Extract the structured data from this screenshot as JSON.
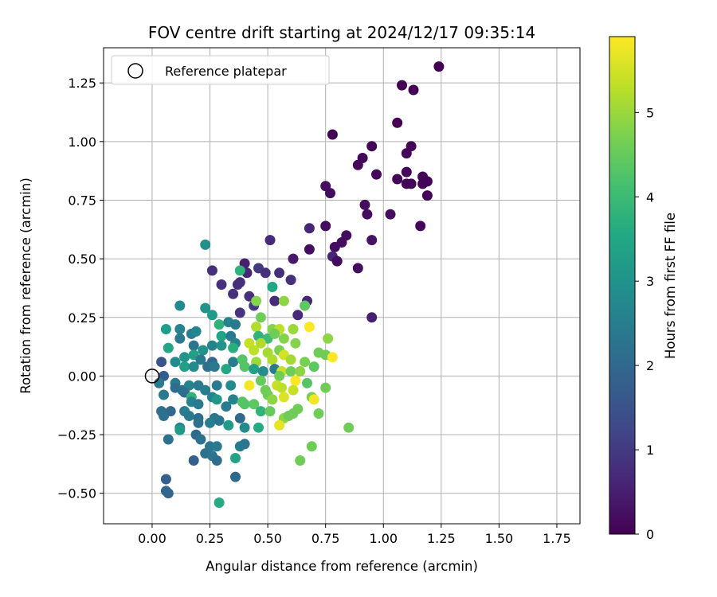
{
  "chart_data": {
    "type": "scatter",
    "title": "FOV centre drift starting at 2024/12/17 09:35:14",
    "xlabel": "Angular distance from reference (arcmin)",
    "ylabel": "Rotation from reference (arcmin)",
    "xlim": [
      -0.21,
      1.85
    ],
    "ylim": [
      -0.63,
      1.4
    ],
    "xticks": [
      0.0,
      0.25,
      0.5,
      0.75,
      1.0,
      1.25,
      1.5,
      1.75
    ],
    "xtick_labels": [
      "0.00",
      "0.25",
      "0.50",
      "0.75",
      "1.00",
      "1.25",
      "1.50",
      "1.75"
    ],
    "yticks": [
      -0.5,
      -0.25,
      0.0,
      0.25,
      0.5,
      0.75,
      1.0,
      1.25
    ],
    "ytick_labels": [
      "−0.50",
      "−0.25",
      "0.00",
      "0.25",
      "0.50",
      "0.75",
      "1.00",
      "1.25"
    ],
    "grid": true,
    "legend": {
      "placement": "upper-left",
      "entries": [
        "Reference platepar"
      ]
    },
    "reference_point": {
      "x": 0.0,
      "y": 0.0
    },
    "colorbar": {
      "label": "Hours from first FF file",
      "range": [
        0,
        5.9
      ],
      "ticks": [
        0,
        1,
        2,
        3,
        4,
        5
      ],
      "colormap": "viridis"
    },
    "points": [
      [
        1.24,
        1.32,
        0.0
      ],
      [
        1.08,
        1.24,
        0.0
      ],
      [
        1.13,
        1.22,
        0.0
      ],
      [
        1.06,
        1.08,
        0.0
      ],
      [
        0.78,
        1.03,
        0.0
      ],
      [
        0.95,
        0.98,
        0.05
      ],
      [
        1.12,
        0.98,
        0.05
      ],
      [
        1.1,
        0.95,
        0.1
      ],
      [
        0.91,
        0.93,
        0.1
      ],
      [
        0.89,
        0.9,
        0.1
      ],
      [
        0.97,
        0.86,
        0.1
      ],
      [
        1.1,
        0.87,
        0.05
      ],
      [
        1.06,
        0.84,
        0.05
      ],
      [
        1.17,
        0.85,
        0.05
      ],
      [
        1.19,
        0.83,
        0.05
      ],
      [
        1.17,
        0.82,
        0.05
      ],
      [
        1.1,
        0.82,
        0.05
      ],
      [
        1.12,
        0.82,
        0.05
      ],
      [
        0.75,
        0.81,
        0.2
      ],
      [
        0.77,
        0.78,
        0.2
      ],
      [
        1.19,
        0.77,
        0.05
      ],
      [
        0.92,
        0.73,
        0.2
      ],
      [
        0.93,
        0.69,
        0.2
      ],
      [
        1.03,
        0.69,
        0.2
      ],
      [
        1.16,
        0.64,
        0.1
      ],
      [
        0.75,
        0.64,
        0.2
      ],
      [
        0.68,
        0.63,
        0.6
      ],
      [
        0.84,
        0.6,
        0.2
      ],
      [
        0.82,
        0.57,
        0.2
      ],
      [
        0.95,
        0.58,
        0.3
      ],
      [
        0.51,
        0.58,
        0.7
      ],
      [
        0.79,
        0.55,
        0.2
      ],
      [
        0.68,
        0.54,
        0.2
      ],
      [
        0.61,
        0.5,
        0.4
      ],
      [
        0.78,
        0.51,
        0.6
      ],
      [
        0.8,
        0.49,
        0.2
      ],
      [
        0.4,
        0.48,
        0.5
      ],
      [
        0.89,
        0.46,
        0.2
      ],
      [
        0.26,
        0.45,
        0.8
      ],
      [
        0.41,
        0.44,
        0.6
      ],
      [
        0.46,
        0.46,
        1.0
      ],
      [
        0.49,
        0.44,
        0.8
      ],
      [
        0.55,
        0.44,
        0.8
      ],
      [
        0.6,
        0.41,
        0.8
      ],
      [
        0.3,
        0.39,
        0.8
      ],
      [
        0.37,
        0.39,
        0.8
      ],
      [
        0.38,
        0.4,
        0.8
      ],
      [
        0.35,
        0.35,
        0.8
      ],
      [
        0.42,
        0.34,
        0.8
      ],
      [
        0.53,
        0.32,
        0.7
      ],
      [
        0.67,
        0.32,
        0.6
      ],
      [
        0.44,
        0.3,
        1.0
      ],
      [
        0.38,
        0.27,
        0.9
      ],
      [
        0.63,
        0.26,
        0.7
      ],
      [
        0.95,
        0.25,
        0.5
      ],
      [
        0.23,
        0.56,
        2.9
      ],
      [
        0.38,
        0.45,
        3.8
      ],
      [
        0.52,
        0.38,
        3.5
      ],
      [
        0.45,
        0.32,
        4.8
      ],
      [
        0.57,
        0.32,
        4.9
      ],
      [
        0.66,
        0.3,
        4.4
      ],
      [
        0.12,
        0.3,
        2.8
      ],
      [
        0.23,
        0.29,
        3.0
      ],
      [
        0.26,
        0.26,
        3.2
      ],
      [
        0.29,
        0.22,
        3.8
      ],
      [
        0.33,
        0.23,
        2.6
      ],
      [
        0.36,
        0.22,
        2.4
      ],
      [
        0.47,
        0.25,
        4.6
      ],
      [
        0.45,
        0.21,
        5.2
      ],
      [
        0.52,
        0.2,
        4.8
      ],
      [
        0.55,
        0.2,
        5.3
      ],
      [
        0.61,
        0.2,
        5.0
      ],
      [
        0.68,
        0.21,
        5.9
      ],
      [
        0.06,
        0.2,
        3.2
      ],
      [
        0.12,
        0.2,
        2.6
      ],
      [
        0.17,
        0.18,
        2.5
      ],
      [
        0.19,
        0.19,
        2.7
      ],
      [
        0.3,
        0.17,
        3.4
      ],
      [
        0.34,
        0.17,
        2.4
      ],
      [
        0.36,
        0.14,
        2.6
      ],
      [
        0.46,
        0.17,
        3.8
      ],
      [
        0.5,
        0.16,
        4.0
      ],
      [
        0.53,
        0.18,
        4.6
      ],
      [
        0.57,
        0.16,
        4.8
      ],
      [
        0.76,
        0.16,
        4.9
      ],
      [
        0.42,
        0.14,
        5.4
      ],
      [
        0.47,
        0.14,
        5.2
      ],
      [
        0.07,
        0.12,
        3.5
      ],
      [
        0.12,
        0.16,
        2.4
      ],
      [
        0.18,
        0.13,
        2.3
      ],
      [
        0.22,
        0.11,
        3.0
      ],
      [
        0.26,
        0.13,
        2.6
      ],
      [
        0.3,
        0.13,
        3.0
      ],
      [
        0.35,
        0.12,
        3.7
      ],
      [
        0.44,
        0.11,
        5.3
      ],
      [
        0.5,
        0.1,
        5.1
      ],
      [
        0.55,
        0.11,
        4.7
      ],
      [
        0.62,
        0.14,
        4.8
      ],
      [
        0.72,
        0.1,
        4.6
      ],
      [
        0.75,
        0.09,
        4.6
      ],
      [
        0.78,
        0.08,
        5.9
      ],
      [
        0.04,
        0.06,
        1.5
      ],
      [
        0.1,
        0.06,
        2.8
      ],
      [
        0.14,
        0.08,
        3.0
      ],
      [
        0.18,
        0.09,
        3.3
      ],
      [
        0.21,
        0.07,
        2.4
      ],
      [
        0.26,
        0.06,
        2.0
      ],
      [
        0.35,
        0.06,
        2.5
      ],
      [
        0.39,
        0.07,
        4.3
      ],
      [
        0.45,
        0.06,
        5.0
      ],
      [
        0.52,
        0.07,
        5.2
      ],
      [
        0.57,
        0.09,
        5.5
      ],
      [
        0.6,
        0.07,
        5.1
      ],
      [
        0.66,
        0.06,
        4.7
      ],
      [
        0.14,
        0.04,
        3.3
      ],
      [
        0.18,
        0.04,
        2.8
      ],
      [
        0.24,
        0.04,
        2.2
      ],
      [
        0.27,
        0.04,
        2.4
      ],
      [
        0.32,
        0.03,
        3.5
      ],
      [
        0.4,
        0.04,
        4.3
      ],
      [
        0.44,
        0.03,
        3.3
      ],
      [
        0.48,
        0.02,
        2.9
      ],
      [
        0.53,
        0.03,
        2.4
      ],
      [
        0.56,
        0.02,
        5.4
      ],
      [
        0.6,
        0.02,
        4.6
      ],
      [
        0.64,
        0.02,
        4.9
      ],
      [
        0.7,
        0.04,
        4.4
      ],
      [
        0.05,
        0.0,
        1.7
      ],
      [
        0.47,
        -0.02,
        4.5
      ],
      [
        0.55,
        0.0,
        4.6
      ],
      [
        0.62,
        -0.02,
        5.9
      ],
      [
        0.67,
        -0.03,
        4.3
      ],
      [
        0.03,
        -0.03,
        2.4
      ],
      [
        0.1,
        -0.03,
        2.4
      ],
      [
        0.1,
        -0.05,
        2.1
      ],
      [
        0.13,
        -0.06,
        2.2
      ],
      [
        0.16,
        -0.04,
        2.6
      ],
      [
        0.2,
        -0.04,
        2.4
      ],
      [
        0.23,
        -0.06,
        2.5
      ],
      [
        0.28,
        -0.04,
        2.4
      ],
      [
        0.34,
        -0.04,
        2.8
      ],
      [
        0.42,
        -0.04,
        5.8
      ],
      [
        0.49,
        -0.06,
        4.6
      ],
      [
        0.54,
        -0.04,
        5.4
      ],
      [
        0.56,
        -0.05,
        5.3
      ],
      [
        0.61,
        -0.06,
        5.4
      ],
      [
        0.75,
        -0.05,
        4.6
      ],
      [
        0.05,
        -0.08,
        2.4
      ],
      [
        0.14,
        -0.07,
        2.1
      ],
      [
        0.17,
        -0.09,
        3.8
      ],
      [
        0.26,
        -0.09,
        2.6
      ],
      [
        0.28,
        -0.1,
        3.1
      ],
      [
        0.35,
        -0.1,
        2.6
      ],
      [
        0.39,
        -0.11,
        4.3
      ],
      [
        0.5,
        -0.08,
        4.6
      ],
      [
        0.52,
        -0.1,
        4.9
      ],
      [
        0.57,
        -0.09,
        5.6
      ],
      [
        0.69,
        -0.09,
        4.7
      ],
      [
        0.7,
        -0.1,
        5.8
      ],
      [
        0.17,
        -0.11,
        2.6
      ],
      [
        0.2,
        -0.12,
        2.4
      ],
      [
        0.32,
        -0.13,
        2.4
      ],
      [
        0.4,
        -0.12,
        4.3
      ],
      [
        0.44,
        -0.12,
        4.4
      ],
      [
        0.47,
        -0.15,
        3.8
      ],
      [
        0.51,
        -0.15,
        4.5
      ],
      [
        0.61,
        -0.16,
        4.6
      ],
      [
        0.72,
        -0.16,
        4.6
      ],
      [
        0.04,
        -0.15,
        2.2
      ],
      [
        0.08,
        -0.15,
        2.0
      ],
      [
        0.14,
        -0.15,
        2.5
      ],
      [
        0.16,
        -0.17,
        2.4
      ],
      [
        0.2,
        -0.18,
        2.1
      ],
      [
        0.27,
        -0.18,
        2.3
      ],
      [
        0.38,
        -0.18,
        2.0
      ],
      [
        0.63,
        -0.14,
        4.6
      ],
      [
        0.57,
        -0.18,
        4.9
      ],
      [
        0.59,
        -0.17,
        4.6
      ],
      [
        0.05,
        -0.17,
        2.2
      ],
      [
        0.12,
        -0.22,
        2.7
      ],
      [
        0.2,
        -0.2,
        2.2
      ],
      [
        0.25,
        -0.2,
        2.5
      ],
      [
        0.29,
        -0.19,
        2.3
      ],
      [
        0.33,
        -0.21,
        3.2
      ],
      [
        0.4,
        -0.22,
        2.8
      ],
      [
        0.46,
        -0.22,
        3.6
      ],
      [
        0.55,
        -0.21,
        5.7
      ],
      [
        0.85,
        -0.22,
        4.6
      ],
      [
        0.12,
        -0.23,
        3.2
      ],
      [
        0.19,
        -0.25,
        2.0
      ],
      [
        0.21,
        -0.27,
        2.2
      ],
      [
        0.07,
        -0.27,
        2.2
      ],
      [
        0.25,
        -0.3,
        2.3
      ],
      [
        0.28,
        -0.3,
        2.4
      ],
      [
        0.38,
        -0.3,
        2.5
      ],
      [
        0.4,
        -0.29,
        2.3
      ],
      [
        0.69,
        -0.3,
        4.6
      ],
      [
        0.23,
        -0.33,
        2.2
      ],
      [
        0.26,
        -0.34,
        2.3
      ],
      [
        0.28,
        -0.36,
        2.1
      ],
      [
        0.36,
        -0.35,
        3.4
      ],
      [
        0.18,
        -0.36,
        1.8
      ],
      [
        0.64,
        -0.36,
        4.6
      ],
      [
        0.36,
        -0.43,
        2.0
      ],
      [
        0.06,
        -0.44,
        1.8
      ],
      [
        0.06,
        -0.49,
        2.0
      ],
      [
        0.07,
        -0.5,
        1.9
      ],
      [
        0.29,
        -0.54,
        3.6
      ]
    ]
  }
}
